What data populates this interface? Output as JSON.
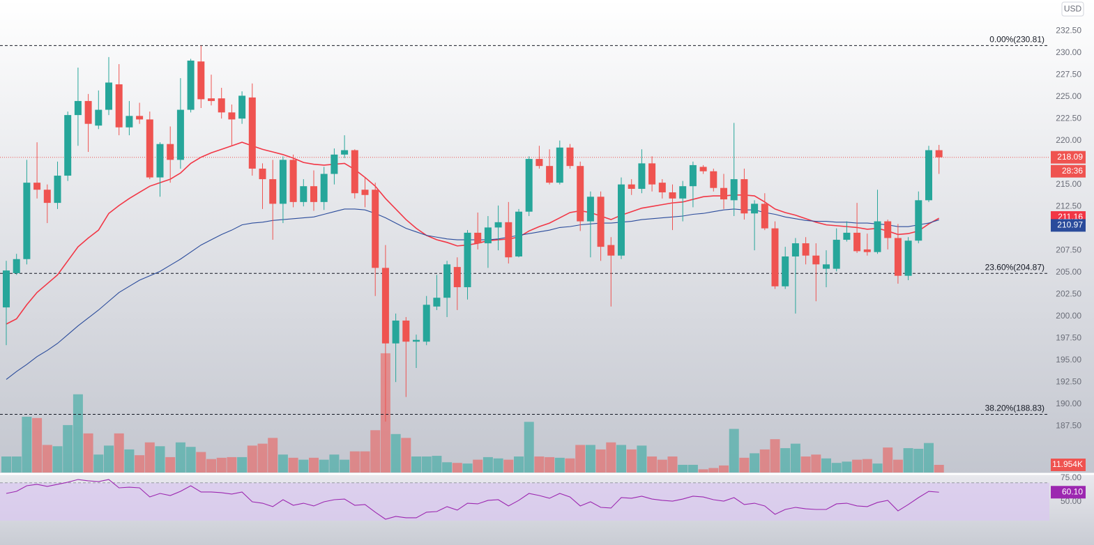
{
  "chart_data": {
    "type": "candlestick",
    "currency": "USD",
    "countdown": "28:36",
    "ylim": [
      182.2,
      236.0
    ],
    "yticks": [
      {
        "value": 232.5,
        "label": "232.50"
      },
      {
        "value": 230,
        "label": "230.00"
      },
      {
        "value": 227.5,
        "label": "227.50"
      },
      {
        "value": 225,
        "label": "225.00"
      },
      {
        "value": 222.5,
        "label": "222.50"
      },
      {
        "value": 220,
        "label": "220.00"
      },
      {
        "value": 215,
        "label": "215.00"
      },
      {
        "value": 212.5,
        "label": "212.50"
      },
      {
        "value": 207.5,
        "label": "207.50"
      },
      {
        "value": 205,
        "label": "205.00"
      },
      {
        "value": 202.5,
        "label": "202.50"
      },
      {
        "value": 200,
        "label": "200.00"
      },
      {
        "value": 197.5,
        "label": "197.50"
      },
      {
        "value": 195,
        "label": "195.00"
      },
      {
        "value": 192.5,
        "label": "192.50"
      },
      {
        "value": 190,
        "label": "190.00"
      },
      {
        "value": 187.5,
        "label": "187.50"
      }
    ],
    "up_color": "#26a69a",
    "down_color": "#ef5350",
    "open": [
      201.0,
      204.9,
      206.5,
      215.2,
      214.4,
      212.9,
      216.0,
      222.9,
      224.5,
      221.7,
      223.5,
      226.4,
      221.5,
      222.8,
      222.4,
      215.8,
      219.6,
      217.8,
      223.5,
      229.0,
      224.8,
      224.8,
      223.2,
      222.5,
      224.9,
      216.8,
      215.6,
      212.8,
      217.8,
      213.0,
      214.8,
      213.0,
      216.2,
      218.4,
      218.9,
      214.4,
      214.4,
      205.5,
      196.9,
      199.5,
      197.1,
      197.1,
      201.1,
      202.1,
      205.6,
      203.3,
      209.5,
      208.3,
      210.1,
      210.7,
      206.8,
      211.9,
      217.9,
      217.1,
      215.2,
      219.2,
      217.1,
      210.8,
      213.6,
      208.1,
      206.9,
      215.0,
      214.5,
      217.4,
      215.2,
      214.1,
      213.4,
      214.8,
      217.0,
      216.5,
      214.6,
      213.2,
      215.6,
      211.7,
      212.8,
      210.0,
      203.4,
      206.8,
      208.3,
      206.9,
      205.4,
      205.4,
      208.7,
      209.5,
      207.6,
      207.3,
      210.8,
      208.9,
      204.6,
      208.6,
      213.2,
      218.9
    ],
    "high": [
      206.3,
      207.1,
      217.8,
      219.8,
      215.0,
      217.6,
      223.3,
      228.3,
      225.3,
      225.7,
      229.5,
      228.7,
      224.5,
      224.3,
      223.3,
      219.8,
      221.6,
      227.1,
      229.3,
      230.8,
      227.5,
      226.0,
      224.1,
      225.6,
      226.5,
      217.4,
      217.8,
      218.2,
      218.4,
      215.6,
      216.6,
      217.0,
      219.1,
      220.6,
      219.0,
      215.8,
      215.2,
      208.1,
      200.3,
      199.9,
      197.9,
      202.3,
      204.7,
      206.3,
      206.7,
      209.8,
      211.8,
      211.4,
      212.6,
      213.0,
      212.2,
      218.2,
      219.4,
      219.0,
      220.0,
      219.6,
      217.6,
      214.2,
      214.2,
      209.0,
      215.8,
      215.6,
      219.0,
      218.2,
      215.6,
      215.0,
      215.4,
      217.6,
      217.2,
      216.8,
      216.2,
      222.0,
      216.8,
      213.2,
      214.0,
      210.8,
      207.9,
      208.9,
      209.0,
      208.3,
      207.5,
      210.0,
      210.8,
      212.9,
      209.4,
      214.4,
      211.0,
      210.5,
      209.0,
      214.2,
      219.4,
      219.5
    ],
    "low": [
      196.7,
      204.7,
      205.9,
      213.4,
      210.6,
      212.2,
      215.4,
      219.4,
      218.7,
      221.3,
      222.9,
      220.6,
      220.6,
      221.9,
      215.6,
      213.6,
      215.2,
      216.8,
      223.2,
      223.7,
      224.0,
      222.5,
      219.4,
      221.9,
      216.0,
      212.2,
      208.7,
      210.6,
      212.4,
      212.5,
      212.0,
      212.1,
      215.0,
      218.0,
      213.4,
      212.4,
      202.3,
      188.0,
      192.5,
      190.8,
      194.1,
      196.7,
      200.7,
      199.9,
      200.7,
      201.9,
      207.6,
      205.5,
      207.5,
      206.0,
      206.7,
      211.4,
      216.8,
      215.0,
      215.0,
      216.8,
      209.7,
      206.7,
      206.3,
      201.1,
      206.5,
      213.8,
      214.0,
      214.2,
      213.4,
      209.8,
      210.8,
      212.4,
      216.2,
      214.2,
      212.2,
      211.4,
      211.0,
      207.5,
      209.8,
      203.1,
      203.1,
      200.3,
      205.9,
      201.7,
      203.3,
      205.1,
      208.5,
      207.2,
      206.9,
      207.1,
      207.6,
      203.7,
      204.1,
      208.3,
      213.0,
      216.2
    ],
    "close": [
      205.2,
      206.5,
      215.2,
      214.4,
      212.9,
      216.0,
      222.9,
      224.5,
      221.9,
      223.5,
      226.6,
      221.5,
      222.8,
      222.4,
      215.8,
      219.6,
      217.8,
      223.5,
      229.1,
      224.7,
      224.5,
      223.2,
      222.4,
      225.1,
      216.8,
      215.6,
      212.8,
      217.8,
      213.0,
      214.8,
      213.0,
      216.2,
      218.4,
      218.9,
      214.0,
      213.8,
      205.5,
      196.9,
      199.5,
      197.1,
      197.3,
      201.3,
      202.1,
      205.9,
      203.3,
      209.5,
      208.3,
      210.1,
      210.7,
      206.7,
      211.9,
      217.9,
      217.1,
      215.2,
      219.2,
      217.1,
      210.8,
      213.6,
      207.9,
      206.9,
      215.0,
      214.5,
      217.4,
      215.0,
      214.1,
      213.4,
      214.8,
      217.2,
      216.5,
      214.6,
      213.3,
      215.6,
      211.7,
      212.8,
      210.0,
      203.4,
      206.8,
      208.3,
      206.9,
      205.9,
      205.9,
      208.7,
      209.5,
      207.4,
      207.3,
      210.8,
      208.9,
      204.6,
      208.6,
      213.2,
      218.9,
      218.09
    ],
    "volume": {
      "values": [
        25,
        25,
        87,
        85,
        43,
        41,
        74,
        122,
        61,
        28,
        42,
        61,
        36,
        27,
        47,
        41,
        24,
        47,
        40,
        32,
        21,
        23,
        24,
        24,
        42,
        45,
        54,
        28,
        23,
        20,
        23,
        20,
        28,
        20,
        33,
        33,
        66,
        186,
        60,
        54,
        25,
        25,
        26,
        16,
        15,
        14,
        20,
        24,
        22,
        20,
        25,
        79,
        25,
        24,
        23,
        22,
        43,
        43,
        36,
        47,
        43,
        36,
        42,
        25,
        20,
        25,
        12,
        12,
        5,
        7,
        11,
        68,
        23,
        30,
        36,
        52,
        38,
        45,
        25,
        28,
        22,
        15,
        17,
        20,
        21,
        14,
        39,
        20,
        38,
        37,
        46,
        11.954
      ],
      "value_labels": [
        null,
        null,
        null,
        null,
        null,
        null,
        null,
        null,
        null,
        null,
        null,
        null,
        null,
        null,
        null,
        null,
        null,
        null,
        null,
        null,
        null,
        null,
        null,
        null,
        null,
        null,
        null,
        null,
        null,
        null,
        null,
        null,
        null,
        null,
        null,
        null,
        null,
        null,
        null,
        null,
        null,
        null,
        null,
        null,
        null,
        null,
        null,
        null,
        null,
        null,
        null,
        null,
        null,
        null,
        null,
        null,
        null,
        null,
        null,
        null,
        null,
        null,
        null,
        null,
        null,
        null,
        null,
        null,
        null,
        null,
        null,
        null,
        null,
        null,
        null,
        null,
        null,
        null,
        null,
        null,
        null,
        null,
        null,
        null,
        null,
        null,
        null,
        null,
        null,
        null,
        null,
        "11.954K"
      ]
    },
    "moving_averages": [
      {
        "color": "#f23645",
        "values": [
          199.1,
          199.7,
          201.3,
          202.7,
          203.7,
          204.7,
          206.3,
          207.9,
          208.9,
          209.8,
          211.7,
          212.6,
          213.4,
          214.1,
          214.8,
          215.2,
          215.6,
          216.3,
          217.4,
          218.1,
          218.6,
          219.0,
          219.4,
          219.8,
          219.4,
          219.0,
          218.7,
          218.4,
          218.0,
          217.5,
          217.3,
          217.2,
          217.3,
          217.4,
          216.7,
          215.8,
          214.8,
          213.4,
          212.2,
          211.0,
          210.0,
          209.2,
          208.7,
          208.4,
          208.0,
          208.1,
          208.3,
          208.6,
          208.7,
          208.8,
          209.0,
          209.7,
          210.2,
          210.6,
          211.2,
          211.8,
          212.0,
          211.8,
          211.4,
          211.0,
          211.5,
          211.9,
          212.3,
          212.5,
          212.7,
          212.9,
          213.0,
          213.3,
          213.6,
          213.7,
          213.7,
          213.8,
          213.8,
          213.7,
          213.0,
          212.2,
          211.8,
          211.5,
          211.1,
          210.7,
          210.4,
          210.3,
          210.2,
          210.1,
          209.9,
          210.0,
          209.7,
          209.3,
          209.4,
          209.7,
          210.5,
          211.16
        ]
      },
      {
        "color": "#2a4b9b",
        "values": [
          192.8,
          193.7,
          194.5,
          195.4,
          196.1,
          196.9,
          197.9,
          198.9,
          199.8,
          200.7,
          201.7,
          202.7,
          203.4,
          204.1,
          204.6,
          205.1,
          205.8,
          206.5,
          207.3,
          208.1,
          208.7,
          209.3,
          209.8,
          210.4,
          210.6,
          210.7,
          210.9,
          211.0,
          211.1,
          211.2,
          211.3,
          211.6,
          211.9,
          212.2,
          212.2,
          212.1,
          211.7,
          211.2,
          210.6,
          210.0,
          209.6,
          209.2,
          209.0,
          208.8,
          208.7,
          208.7,
          208.7,
          208.7,
          208.8,
          209.0,
          209.2,
          209.4,
          209.6,
          209.8,
          210.1,
          210.2,
          210.4,
          210.5,
          210.6,
          210.6,
          210.7,
          210.8,
          211.0,
          211.1,
          211.2,
          211.3,
          211.4,
          211.6,
          211.7,
          211.9,
          212.1,
          212.2,
          212.1,
          212.1,
          211.8,
          211.6,
          211.3,
          211.1,
          210.9,
          210.8,
          210.8,
          210.7,
          210.7,
          210.6,
          210.6,
          210.5,
          210.4,
          210.2,
          210.2,
          210.4,
          210.6,
          210.97
        ]
      }
    ],
    "fib_levels": [
      {
        "label": "0.00%(230.81)",
        "value": 230.81
      },
      {
        "label": "23.60%(204.87)",
        "value": 204.87
      },
      {
        "label": "38.20%(188.83)",
        "value": 188.83
      }
    ],
    "rsi": {
      "color": "#9c27b0",
      "ylim": [
        4.4,
        79.4
      ],
      "yticks": [
        {
          "value": 75,
          "label": "75.00"
        },
        {
          "value": 50,
          "label": "50.00"
        }
      ],
      "band": [
        30,
        70
      ],
      "values": [
        58.8,
        61.0,
        66.9,
        68.4,
        66.2,
        68.4,
        70.6,
        73.5,
        72.1,
        71.3,
        73.5,
        64.7,
        65.4,
        64.7,
        55.1,
        58.8,
        56.6,
        61.0,
        66.9,
        60.3,
        60.3,
        59.6,
        58.1,
        60.3,
        50.0,
        48.5,
        44.9,
        52.2,
        46.3,
        48.5,
        45.6,
        50.0,
        52.2,
        52.9,
        46.3,
        47.1,
        39.0,
        31.6,
        34.6,
        33.1,
        33.1,
        39.0,
        39.7,
        44.9,
        41.2,
        48.5,
        47.8,
        51.5,
        52.2,
        45.6,
        51.5,
        58.8,
        56.6,
        53.7,
        58.8,
        55.1,
        45.6,
        50.0,
        44.1,
        43.4,
        54.4,
        53.7,
        55.9,
        52.9,
        51.5,
        50.7,
        52.9,
        55.9,
        55.1,
        52.2,
        50.7,
        54.4,
        47.1,
        48.5,
        45.6,
        36.8,
        41.9,
        44.1,
        42.6,
        41.9,
        41.9,
        47.8,
        48.5,
        45.6,
        44.9,
        49.3,
        51.5,
        40.4,
        47.1,
        54.4,
        61.0,
        60.1
      ],
      "value_labels": [
        null,
        null,
        null,
        null,
        null,
        null,
        null,
        null,
        null,
        null,
        null,
        null,
        null,
        null,
        null,
        null,
        null,
        null,
        null,
        null,
        null,
        null,
        null,
        null,
        null,
        null,
        null,
        null,
        null,
        null,
        null,
        null,
        null,
        null,
        null,
        null,
        null,
        null,
        null,
        null,
        null,
        null,
        null,
        null,
        null,
        null,
        null,
        null,
        null,
        null,
        null,
        null,
        null,
        null,
        null,
        null,
        null,
        null,
        null,
        null,
        null,
        null,
        null,
        null,
        null,
        null,
        null,
        null,
        null,
        null,
        null,
        null,
        null,
        null,
        null,
        null,
        null,
        null,
        null,
        null,
        null,
        null,
        null,
        null,
        null,
        null,
        null,
        null,
        null,
        null,
        null,
        "60.10"
      ]
    }
  }
}
